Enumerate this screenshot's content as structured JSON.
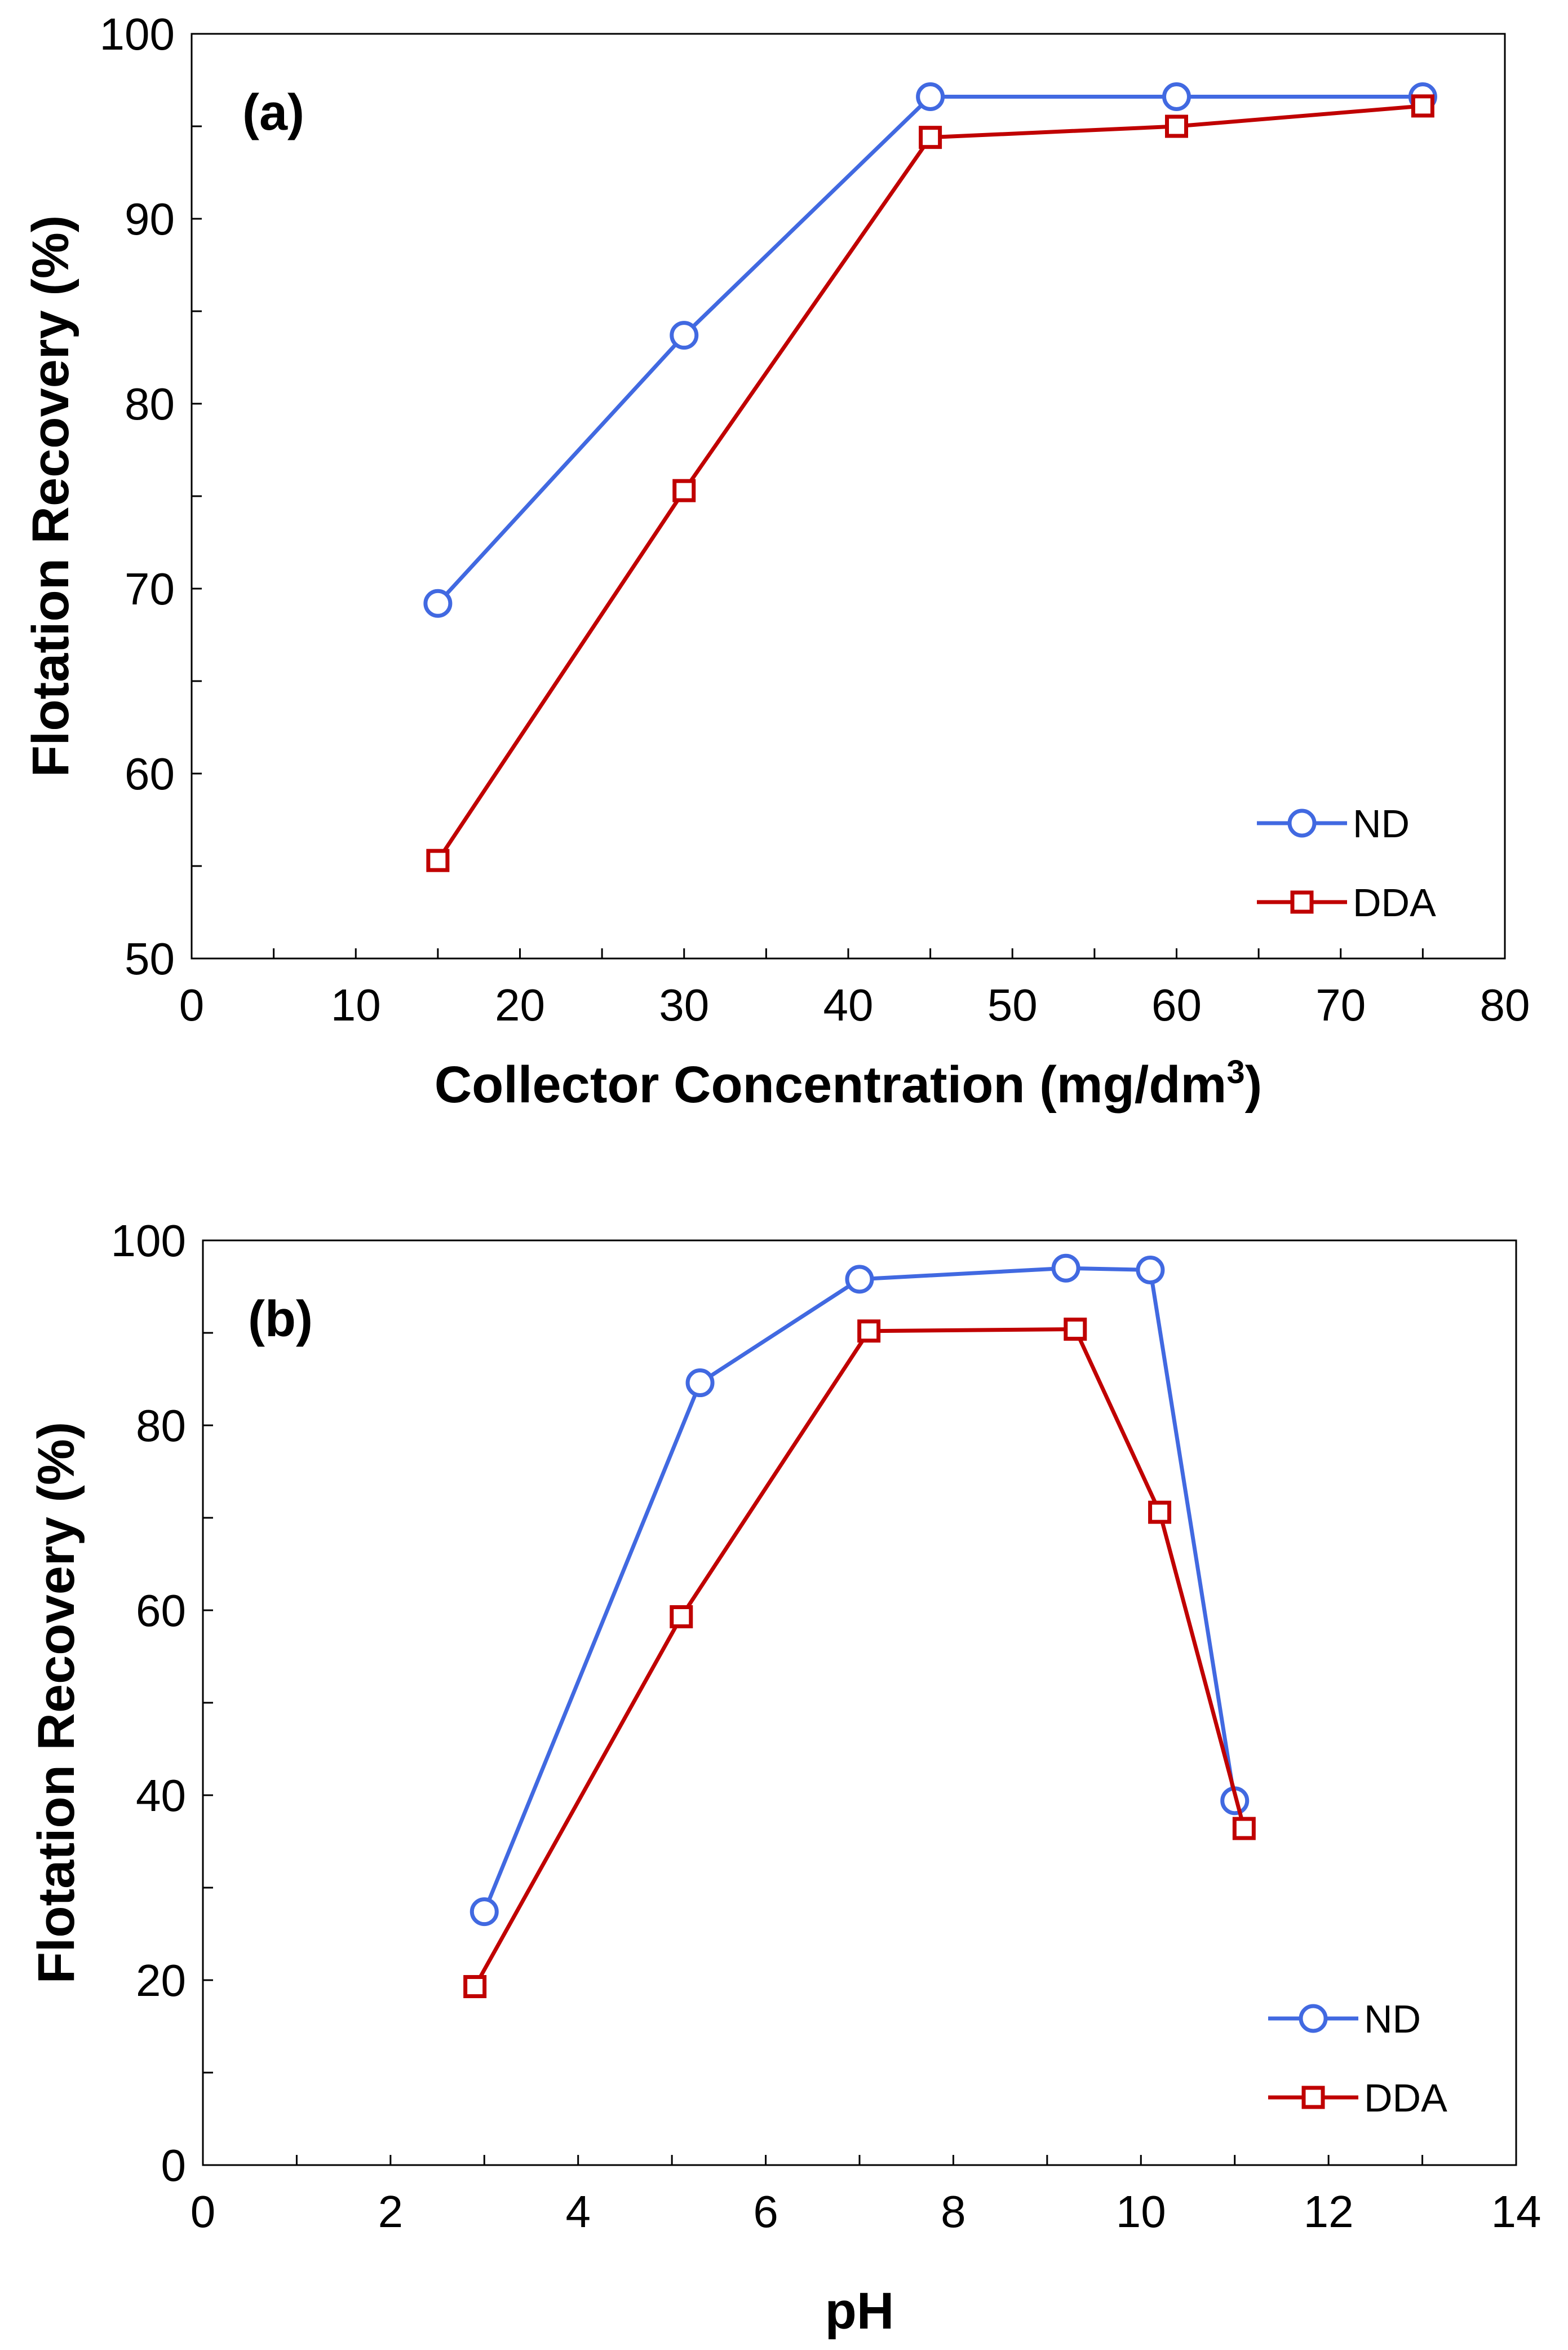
{
  "chart_data": [
    {
      "type": "line",
      "panel_label": "(a)",
      "xlabel": "Collector Concentration (mg/dm",
      "xlabel_sup": "3",
      "xlabel_end": ")",
      "ylabel": "Flotation Recovery (%)",
      "xlim": [
        0,
        80
      ],
      "ylim": [
        50,
        100
      ],
      "xticks": [
        0,
        10,
        20,
        30,
        40,
        50,
        60,
        70,
        80
      ],
      "yticks": [
        50,
        60,
        70,
        80,
        90,
        100
      ],
      "xminor_step": 5,
      "yminor_step": 5,
      "legend_position": "bottom-right",
      "series": [
        {
          "name": "ND",
          "marker": "circle",
          "color": "#4169E1",
          "x": [
            15,
            30,
            45,
            60,
            75
          ],
          "y": [
            69.2,
            83.7,
            96.6,
            96.6,
            96.6
          ]
        },
        {
          "name": "DDA",
          "marker": "square",
          "color": "#C00000",
          "x": [
            15,
            30,
            45,
            60,
            75
          ],
          "y": [
            55.3,
            75.3,
            94.4,
            95.0,
            96.1
          ]
        }
      ]
    },
    {
      "type": "line",
      "panel_label": "(b)",
      "xlabel": "pH",
      "ylabel": "Flotation Recovery (%)",
      "xlim": [
        0,
        14
      ],
      "ylim": [
        0,
        100
      ],
      "xticks": [
        0,
        2,
        4,
        6,
        8,
        10,
        12,
        14
      ],
      "yticks": [
        0,
        20,
        40,
        60,
        80,
        100
      ],
      "xminor_step": 1,
      "yminor_step": 10,
      "legend_position": "bottom-right",
      "series": [
        {
          "name": "ND",
          "marker": "circle",
          "color": "#4169E1",
          "x": [
            3.0,
            5.3,
            7.0,
            9.2,
            10.1,
            11.0
          ],
          "y": [
            27.4,
            84.6,
            95.8,
            97.0,
            96.8,
            39.4
          ]
        },
        {
          "name": "DDA",
          "marker": "square",
          "color": "#C00000",
          "x": [
            2.9,
            5.1,
            7.1,
            9.3,
            10.2,
            11.1
          ],
          "y": [
            19.3,
            59.3,
            90.2,
            90.4,
            70.6,
            36.4
          ]
        }
      ]
    }
  ]
}
